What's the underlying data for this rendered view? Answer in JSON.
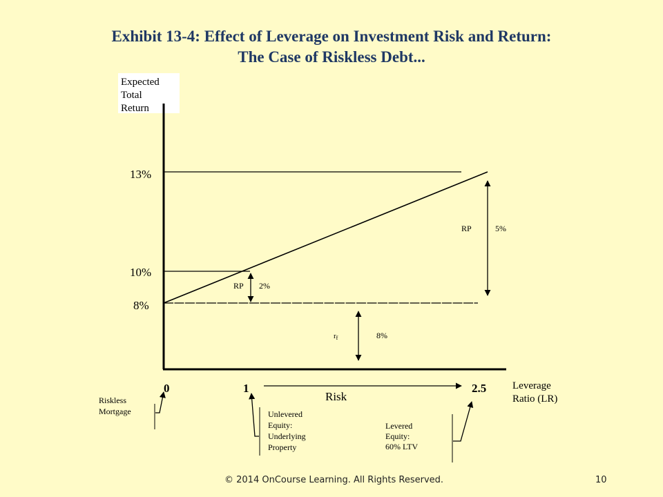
{
  "title": {
    "line1": "Exhibit 13-4: Effect of Leverage on Investment Risk and Return:",
    "line2": "The Case of Riskless Debt..."
  },
  "yaxis": {
    "label_lines": [
      "Expected",
      "Total",
      "Return"
    ],
    "ticks": [
      "13%",
      "10%",
      "8%"
    ]
  },
  "xaxis": {
    "ticks": [
      "0",
      "1",
      "2.5"
    ],
    "label_lines": [
      "Leverage",
      "Ratio (LR)"
    ],
    "arrow_label": "Risk"
  },
  "annotations": {
    "rp_small": {
      "label": "RP",
      "value": "2%"
    },
    "rp_large": {
      "label": "RP",
      "value": "5%"
    },
    "rf": {
      "label": "r",
      "sub": "f",
      "value": "8%"
    }
  },
  "callouts": {
    "riskless": [
      "Riskless",
      "Mortgage"
    ],
    "unlevered": [
      "Unlevered",
      "Equity:",
      "Underlying",
      "Property"
    ],
    "levered": [
      "Levered",
      "Equity:",
      "60% LTV"
    ]
  },
  "footer": {
    "copyright": "© 2014 OnCourse Learning. All Rights Reserved.",
    "page": "10"
  }
}
